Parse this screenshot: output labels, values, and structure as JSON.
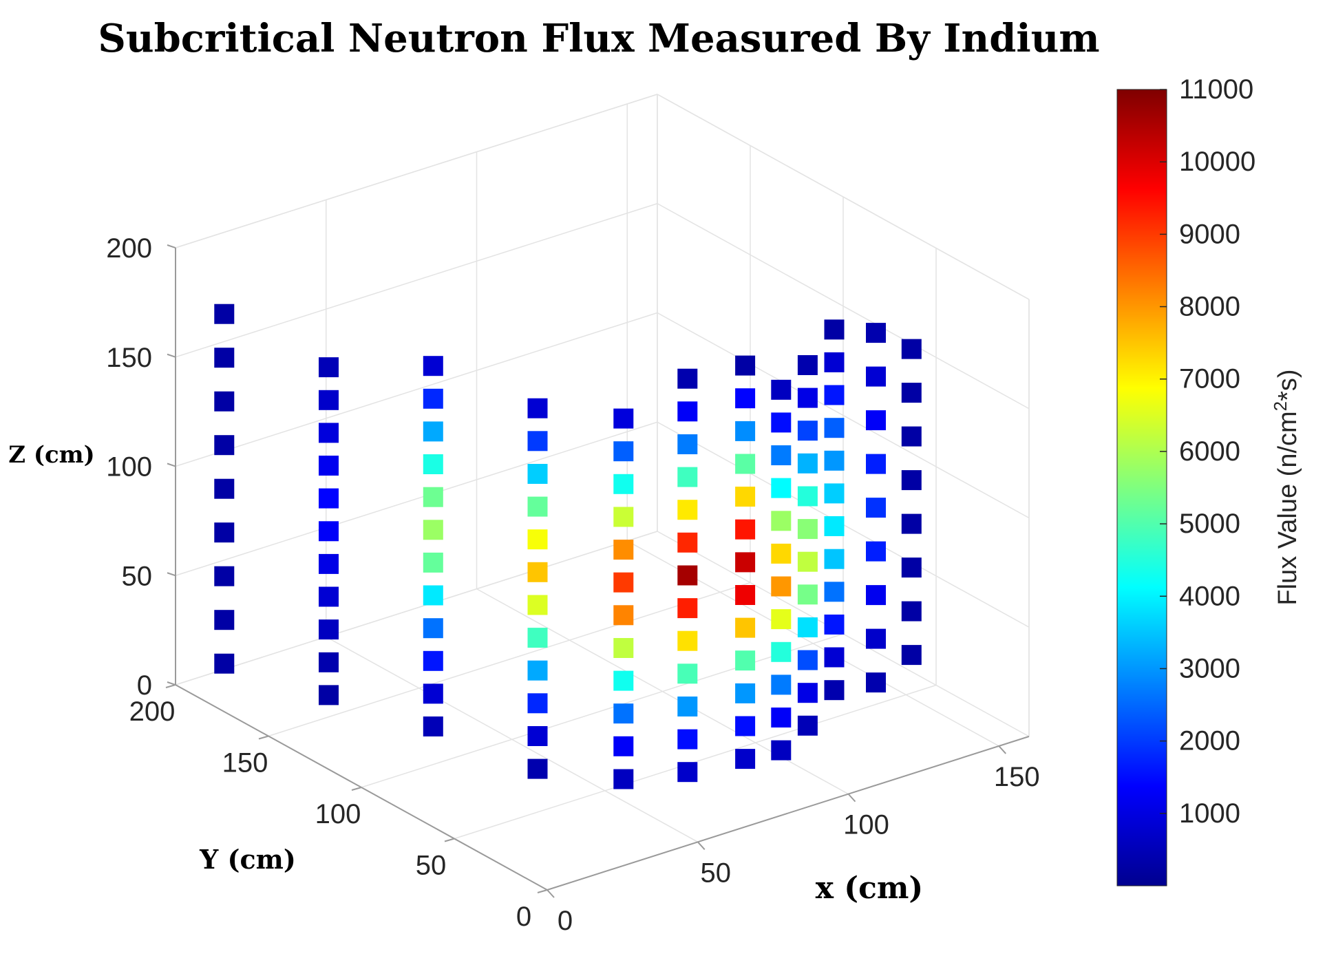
{
  "chart_data": {
    "type": "scatter3d",
    "title": "Subcritical Neutron Flux Measured By Indium",
    "xlabel": "x (cm)",
    "ylabel": "Y (cm)",
    "zlabel": "Z (cm)",
    "xlim": [
      0,
      160
    ],
    "ylim": [
      0,
      200
    ],
    "zlim": [
      0,
      200
    ],
    "xticks": [
      "0",
      "50",
      "100",
      "150"
    ],
    "yticks": [
      "0",
      "50",
      "100",
      "150",
      "200"
    ],
    "zticks": [
      "0",
      "50",
      "100",
      "150",
      "200"
    ],
    "colorbar": {
      "label": "Flux Value (n/cm",
      "label_sup": "2",
      "label_suffix": "*s)",
      "min": 0,
      "max": 11000,
      "ticks": [
        "1000",
        "2000",
        "3000",
        "4000",
        "5000",
        "6000",
        "7000",
        "8000",
        "9000",
        "10000",
        "11000"
      ],
      "colormap": "jet"
    },
    "columns": [
      {
        "x": 10,
        "y": 190,
        "z": [
          10,
          30,
          50,
          70,
          90,
          110,
          130,
          150,
          170
        ],
        "flux": [
          400,
          400,
          400,
          400,
          400,
          400,
          400,
          400,
          400
        ]
      },
      {
        "x": 20,
        "y": 150,
        "z": [
          10,
          25,
          40,
          55,
          70,
          85,
          100,
          115,
          130,
          145,
          160
        ],
        "flux": [
          400,
          500,
          700,
          900,
          1100,
          1300,
          1400,
          1200,
          1000,
          800,
          600
        ]
      },
      {
        "x": 30,
        "y": 110,
        "z": [
          10,
          25,
          40,
          55,
          70,
          85,
          100,
          115,
          130,
          145,
          160,
          175
        ],
        "flux": [
          600,
          900,
          1600,
          2600,
          3900,
          5200,
          5800,
          5300,
          4400,
          3200,
          1800,
          900
        ]
      },
      {
        "x": 40,
        "y": 70,
        "z": [
          5,
          20,
          35,
          50,
          65,
          80,
          95,
          110,
          125,
          140,
          155,
          170
        ],
        "flux": [
          500,
          900,
          1800,
          3200,
          4800,
          6500,
          7500,
          6800,
          5200,
          3600,
          2000,
          900
        ]
      },
      {
        "x": 50,
        "y": 40,
        "z": [
          10,
          25,
          40,
          55,
          70,
          85,
          100,
          115,
          130,
          145,
          160,
          175
        ],
        "flux": [
          700,
          1300,
          2600,
          4300,
          6200,
          8200,
          9000,
          8100,
          6300,
          4300,
          2400,
          1000
        ]
      },
      {
        "x": 62,
        "y": 25,
        "z": [
          15,
          30,
          45,
          60,
          75,
          90,
          105,
          120,
          135,
          150,
          165,
          180,
          195
        ],
        "flux": [
          800,
          1500,
          3000,
          4900,
          7200,
          9300,
          10600,
          9200,
          7100,
          4800,
          2700,
          1300,
          500
        ]
      },
      {
        "x": 75,
        "y": 15,
        "z": [
          20,
          35,
          50,
          65,
          80,
          95,
          110,
          125,
          140,
          155,
          170,
          185,
          200
        ],
        "flux": [
          800,
          1500,
          3000,
          5000,
          7500,
          9800,
          10200,
          9400,
          7300,
          5100,
          2900,
          1400,
          400
        ]
      },
      {
        "x": 90,
        "y": 20,
        "z": [
          15,
          30,
          45,
          60,
          75,
          90,
          105,
          120,
          135,
          150,
          165,
          180
        ],
        "flux": [
          700,
          1300,
          2700,
          4500,
          6600,
          8000,
          7300,
          5800,
          4100,
          2700,
          1500,
          700
        ]
      },
      {
        "x": 105,
        "y": 30,
        "z": [
          15,
          30,
          45,
          60,
          75,
          90,
          105,
          120,
          135,
          150,
          165,
          180
        ],
        "flux": [
          600,
          1100,
          2200,
          3800,
          5400,
          6200,
          5600,
          4500,
          3300,
          2100,
          1100,
          500
        ]
      },
      {
        "x": 120,
        "y": 40,
        "z": [
          20,
          35,
          50,
          65,
          80,
          95,
          110,
          125,
          140,
          155,
          170,
          185
        ],
        "flux": [
          500,
          900,
          1600,
          2600,
          3500,
          3900,
          3600,
          3000,
          2400,
          1600,
          900,
          400
        ]
      },
      {
        "x": 140,
        "y": 50,
        "z": [
          10,
          30,
          50,
          70,
          90,
          110,
          130,
          150,
          170
        ],
        "flux": [
          500,
          800,
          1200,
          1700,
          1900,
          1700,
          1300,
          900,
          500
        ]
      },
      {
        "x": 158,
        "y": 60,
        "z": [
          10,
          30,
          50,
          70,
          90,
          110,
          130,
          150
        ],
        "flux": [
          400,
          400,
          400,
          400,
          400,
          400,
          400,
          400
        ]
      }
    ]
  }
}
